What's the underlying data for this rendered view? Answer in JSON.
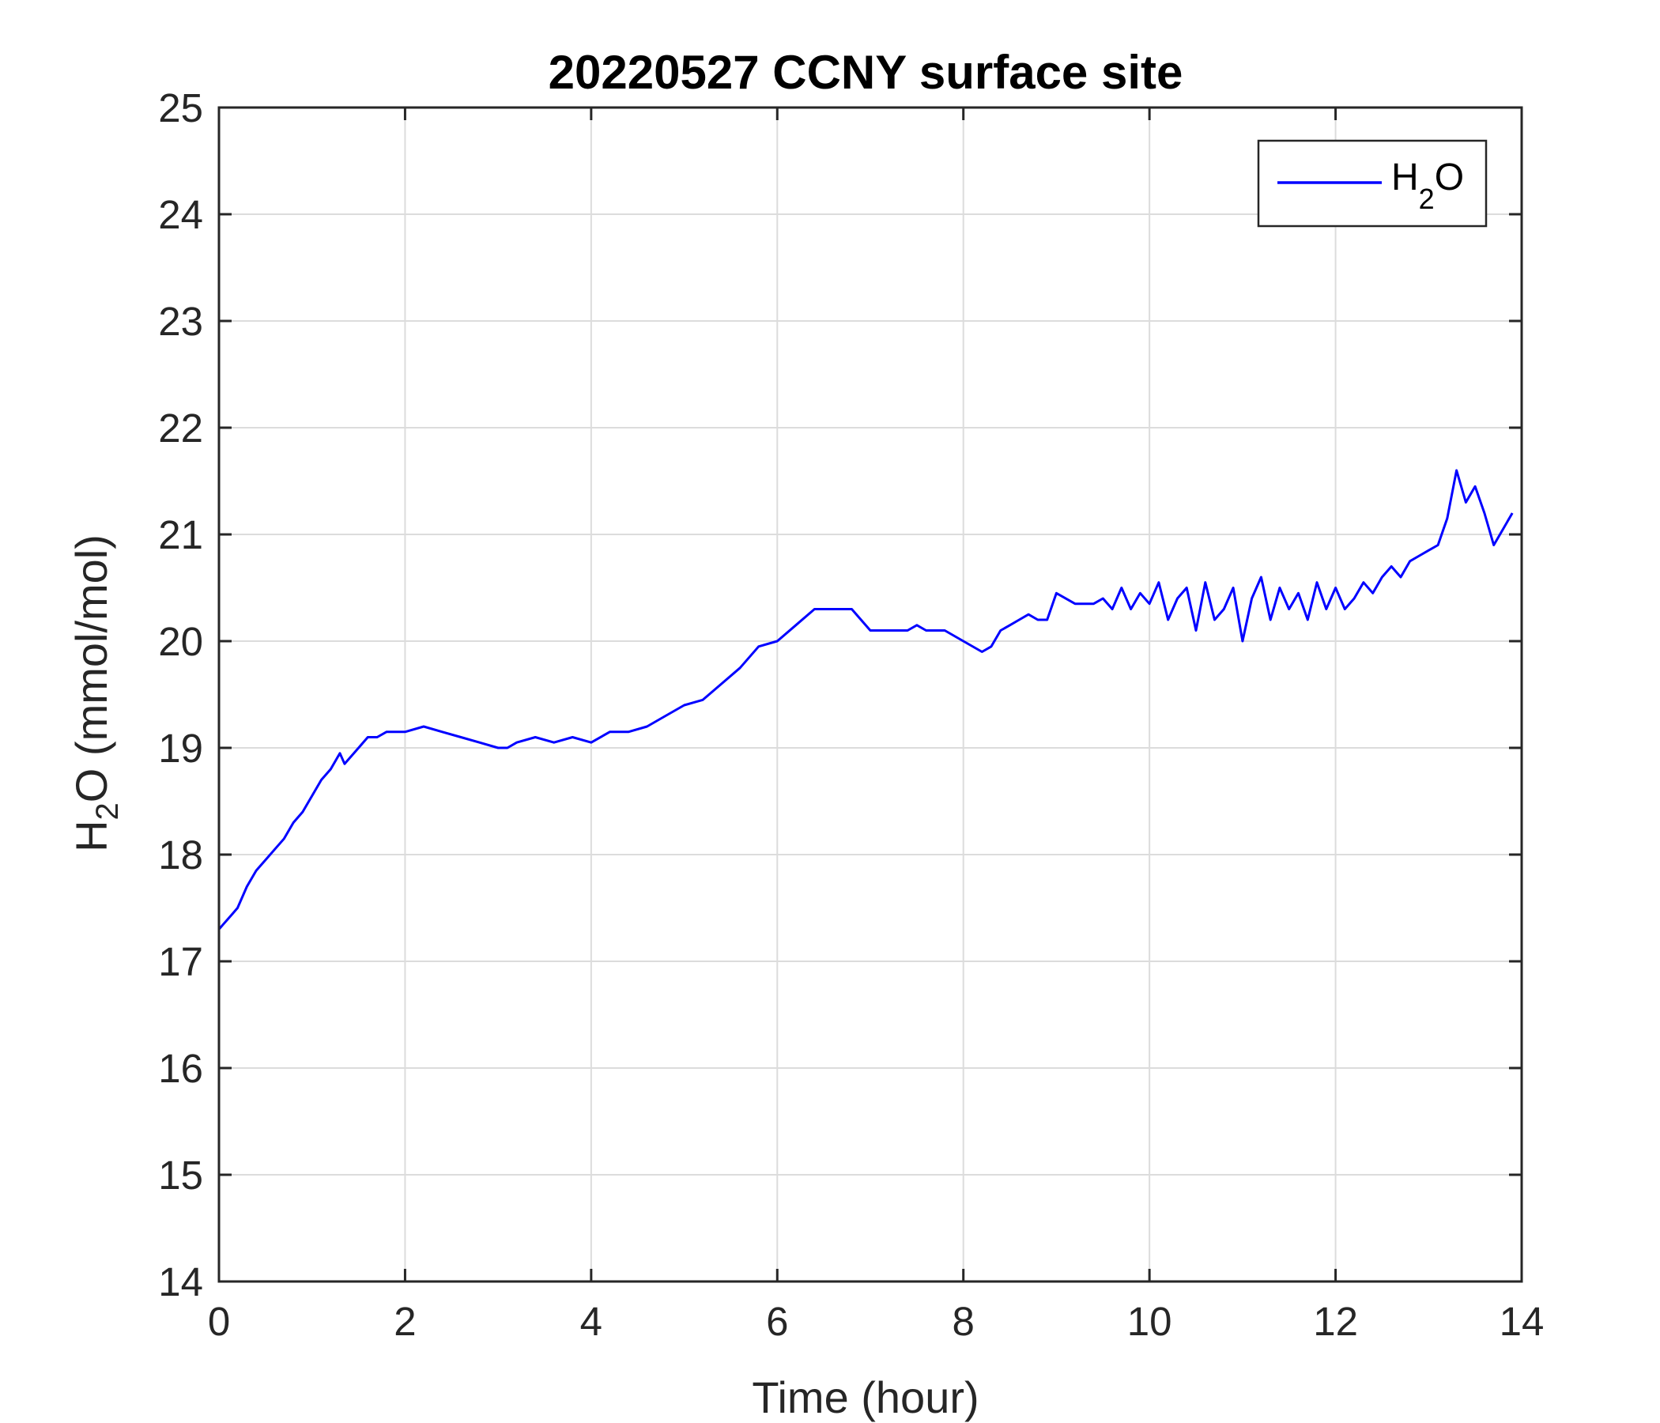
{
  "chart_data": {
    "type": "line",
    "title": "20220527 CCNY surface site",
    "xlabel": "Time (hour)",
    "ylabel": {
      "main": "H",
      "sub": "2",
      "rest": "O (mmol/mol)"
    },
    "xlim": [
      0,
      14
    ],
    "ylim": [
      14,
      25
    ],
    "xticks": [
      0,
      2,
      4,
      6,
      8,
      10,
      12,
      14
    ],
    "yticks": [
      14,
      15,
      16,
      17,
      18,
      19,
      20,
      21,
      22,
      23,
      24,
      25
    ],
    "grid": true,
    "legend": {
      "position": "top-right",
      "entries": [
        {
          "main": "H",
          "sub": "2",
          "rest": "O"
        }
      ]
    },
    "colors": {
      "series": "#0000ff",
      "grid": "#dcdcdc",
      "axes": "#262626"
    },
    "series": [
      {
        "color": "#0000ff",
        "x": [
          0.0,
          0.05,
          0.1,
          0.15,
          0.2,
          0.3,
          0.4,
          0.5,
          0.6,
          0.7,
          0.8,
          0.9,
          1.0,
          1.1,
          1.2,
          1.3,
          1.35,
          1.4,
          1.5,
          1.6,
          1.7,
          1.8,
          1.9,
          2.0,
          2.2,
          2.4,
          2.6,
          2.8,
          3.0,
          3.1,
          3.2,
          3.4,
          3.6,
          3.8,
          4.0,
          4.2,
          4.4,
          4.6,
          4.8,
          5.0,
          5.2,
          5.4,
          5.6,
          5.8,
          6.0,
          6.2,
          6.4,
          6.6,
          6.8,
          7.0,
          7.2,
          7.4,
          7.5,
          7.6,
          7.8,
          8.0,
          8.2,
          8.3,
          8.4,
          8.5,
          8.6,
          8.7,
          8.8,
          8.9,
          9.0,
          9.2,
          9.4,
          9.5,
          9.6,
          9.7,
          9.8,
          9.9,
          10.0,
          10.1,
          10.2,
          10.3,
          10.4,
          10.5,
          10.6,
          10.7,
          10.8,
          10.9,
          11.0,
          11.1,
          11.2,
          11.3,
          11.4,
          11.5,
          11.6,
          11.7,
          11.8,
          11.9,
          12.0,
          12.1,
          12.2,
          12.3,
          12.4,
          12.5,
          12.6,
          12.7,
          12.8,
          12.9,
          13.0,
          13.1,
          13.2,
          13.3,
          13.4,
          13.5,
          13.6,
          13.7,
          13.8,
          13.9
        ],
        "y": [
          17.3,
          17.35,
          17.4,
          17.45,
          17.5,
          17.7,
          17.85,
          17.95,
          18.05,
          18.15,
          18.3,
          18.4,
          18.55,
          18.7,
          18.8,
          18.95,
          18.85,
          18.9,
          19.0,
          19.1,
          19.1,
          19.15,
          19.15,
          19.15,
          19.2,
          19.15,
          19.1,
          19.05,
          19.0,
          19.0,
          19.05,
          19.1,
          19.05,
          19.1,
          19.05,
          19.15,
          19.15,
          19.2,
          19.3,
          19.4,
          19.45,
          19.6,
          19.75,
          19.95,
          20.0,
          20.15,
          20.3,
          20.3,
          20.3,
          20.1,
          20.1,
          20.1,
          20.15,
          20.1,
          20.1,
          20.0,
          19.9,
          19.95,
          20.1,
          20.15,
          20.2,
          20.25,
          20.2,
          20.2,
          20.45,
          20.35,
          20.35,
          20.4,
          20.3,
          20.5,
          20.3,
          20.45,
          20.35,
          20.55,
          20.2,
          20.4,
          20.5,
          20.1,
          20.55,
          20.2,
          20.3,
          20.5,
          20.0,
          20.4,
          20.6,
          20.2,
          20.5,
          20.3,
          20.45,
          20.2,
          20.55,
          20.3,
          20.5,
          20.3,
          20.4,
          20.55,
          20.45,
          20.6,
          20.7,
          20.6,
          20.75,
          20.8,
          20.85,
          20.9,
          21.15,
          21.6,
          21.3,
          21.45,
          21.2,
          20.9,
          21.05,
          21.2
        ]
      }
    ]
  }
}
